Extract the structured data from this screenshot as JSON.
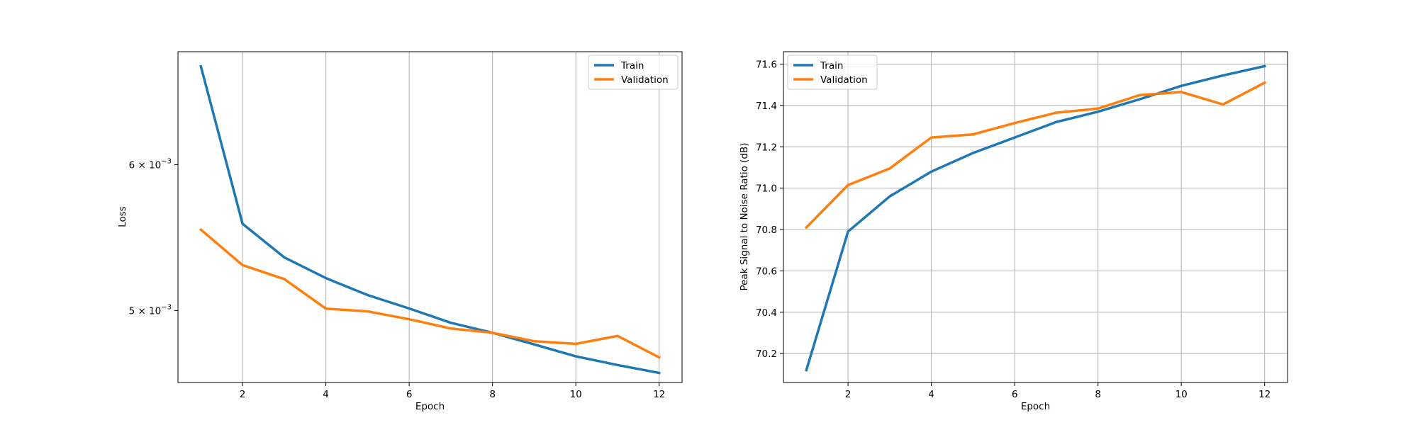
{
  "chart_data": [
    {
      "type": "line",
      "title": "",
      "xlabel": "Epoch",
      "ylabel": "Loss",
      "yscale": "log",
      "grid": "x-only",
      "legend_position": "top-right",
      "x": [
        1,
        2,
        3,
        4,
        5,
        6,
        7,
        8,
        9,
        10,
        11,
        12
      ],
      "xlim": [
        0.45,
        12.55
      ],
      "ylim": [
        0.00457,
        0.00691
      ],
      "xticks": [
        2,
        4,
        6,
        8,
        10,
        12
      ],
      "xtick_labels": [
        "2",
        "4",
        "6",
        "8",
        "10",
        "12"
      ],
      "yticks": [
        0.006,
        0.005
      ],
      "ytick_labels": [
        {
          "base": "6 × 10",
          "exp": "−3"
        },
        {
          "base": "5 × 10",
          "exp": "−3"
        }
      ],
      "series": [
        {
          "name": "Train",
          "color": "#1f77b4",
          "values": [
            0.006785,
            0.005573,
            0.005344,
            0.005207,
            0.005098,
            0.005013,
            0.004924,
            0.004863,
            0.004793,
            0.004722,
            0.004671,
            0.004625
          ]
        },
        {
          "name": "Validation",
          "color": "#ff7f0e",
          "values": [
            0.005532,
            0.005292,
            0.005201,
            0.005012,
            0.004995,
            0.004946,
            0.004889,
            0.004863,
            0.004812,
            0.004796,
            0.004844,
            0.004716
          ]
        }
      ]
    },
    {
      "type": "line",
      "title": "",
      "xlabel": "Epoch",
      "ylabel": "Peak Signal to Noise Ratio (dB)",
      "yscale": "linear",
      "grid": "both",
      "legend_position": "top-left",
      "x": [
        1,
        2,
        3,
        4,
        5,
        6,
        7,
        8,
        9,
        10,
        11,
        12
      ],
      "xlim": [
        0.45,
        12.55
      ],
      "ylim": [
        70.06,
        71.66
      ],
      "xticks": [
        2,
        4,
        6,
        8,
        10,
        12
      ],
      "xtick_labels": [
        "2",
        "4",
        "6",
        "8",
        "10",
        "12"
      ],
      "yticks": [
        70.2,
        70.4,
        70.6,
        70.8,
        71.0,
        71.2,
        71.4,
        71.6
      ],
      "ytick_labels": [
        "70.2",
        "70.4",
        "70.6",
        "70.8",
        "71.0",
        "71.2",
        "71.4",
        "71.6"
      ],
      "series": [
        {
          "name": "Train",
          "color": "#1f77b4",
          "values": [
            70.12,
            70.79,
            70.96,
            71.08,
            71.17,
            71.245,
            71.32,
            71.37,
            71.43,
            71.495,
            71.545,
            71.59
          ]
        },
        {
          "name": "Validation",
          "color": "#ff7f0e",
          "values": [
            70.81,
            71.015,
            71.095,
            71.245,
            71.26,
            71.315,
            71.365,
            71.385,
            71.45,
            71.465,
            71.405,
            71.51
          ]
        }
      ]
    }
  ]
}
